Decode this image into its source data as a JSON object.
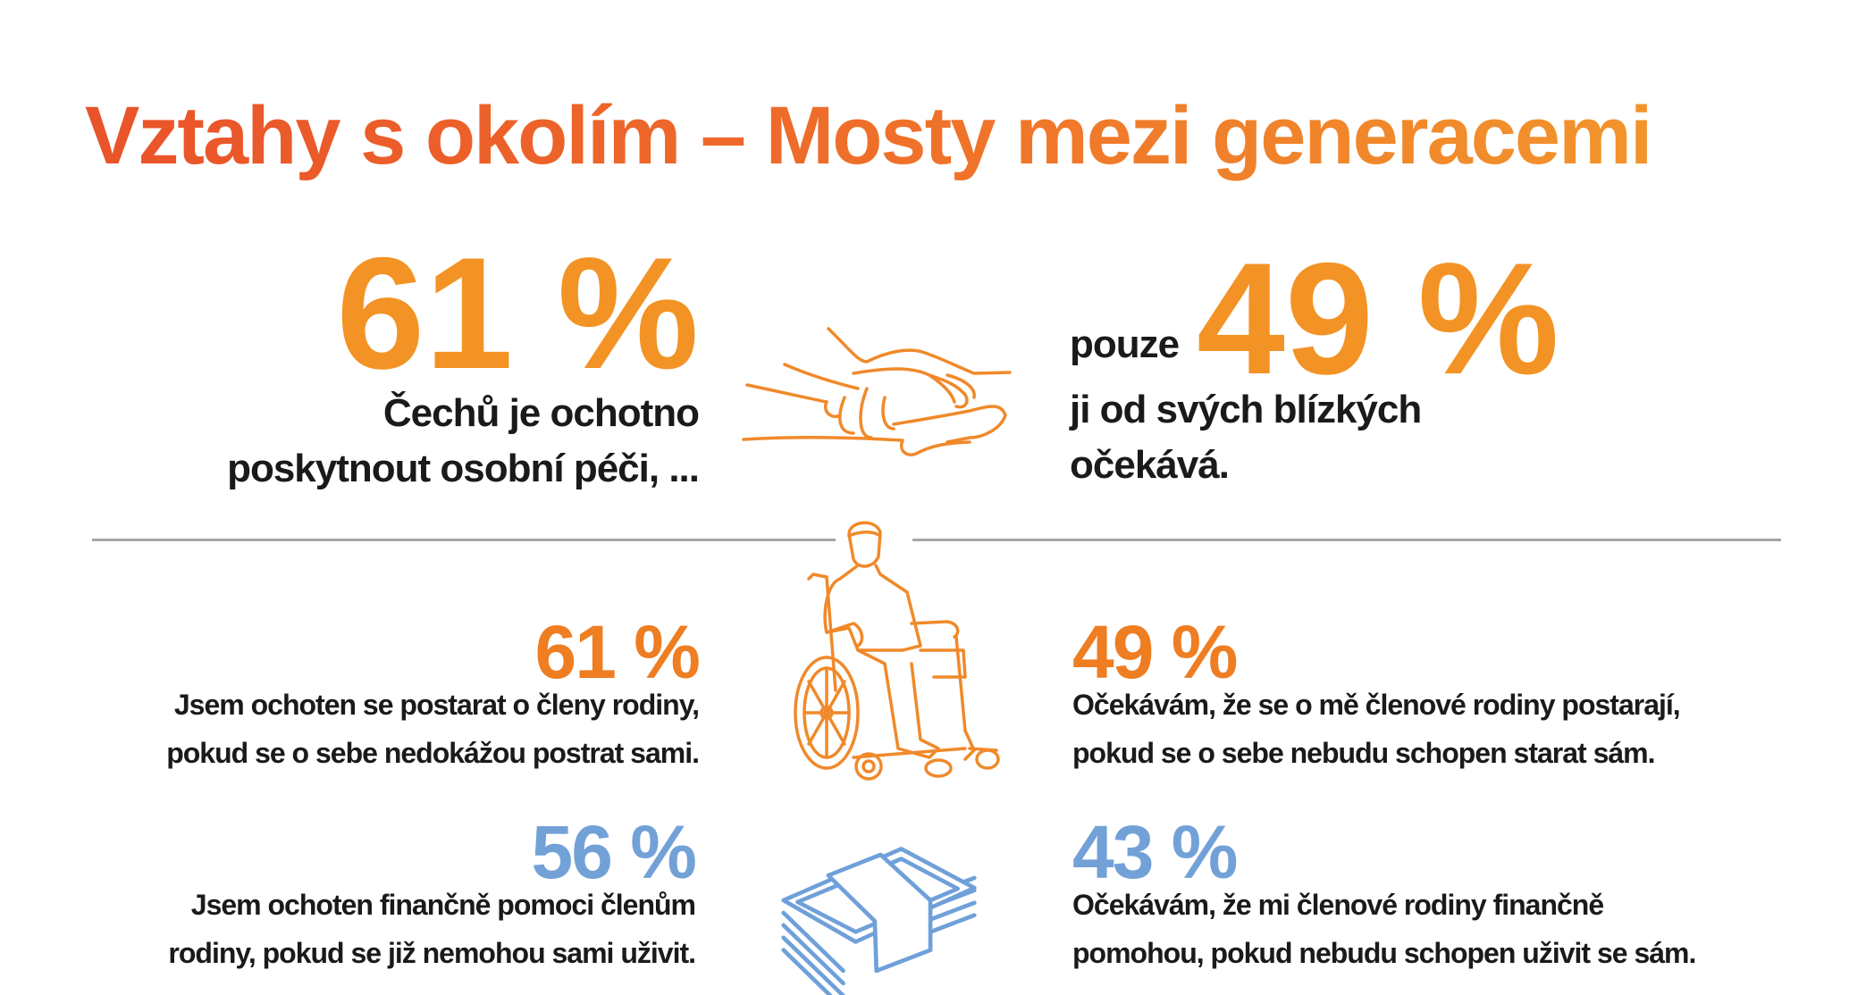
{
  "title": "Vztahy s okolím – Mosty mezi generacemi",
  "colors": {
    "title_start": "#e9532a",
    "title_end": "#f39b2c",
    "orange": "#ef7d22",
    "big_orange": "#f39325",
    "blue": "#72a1d8",
    "divider": "#a6a6a6"
  },
  "hero": {
    "left": {
      "value": "61 %",
      "line1": "Čechů je ochotno",
      "line2": "poskytnout osobní péči, ..."
    },
    "right": {
      "prefix": "pouze",
      "value": "49 %",
      "line1": "ji od svých blízkých",
      "line2": "očekává."
    },
    "icon": "holding-hands-icon"
  },
  "stats": [
    {
      "value": "61 %",
      "line1": "Jsem ochoten se postarat o členy rodiny,",
      "line2": "pokud se o sebe nedokážou postrat sami."
    },
    {
      "value": "49 %",
      "line1": "Očekávám, že se o mě členové rodiny postarají,",
      "line2": "pokud se o sebe nebudu schopen starat sám."
    },
    {
      "value": "56 %",
      "line1": "Jsem ochoten finančně pomoci členům",
      "line2": "rodiny, pokud se již nemohou sami uživit."
    },
    {
      "value": "43 %",
      "line1": "Očekávám, že mi členové rodiny finančně",
      "line2": "pomohou, pokud nebudu schopen uživit se sám."
    }
  ],
  "icons": [
    "holding-hands-icon",
    "wheelchair-person-icon",
    "money-stack-icon"
  ]
}
